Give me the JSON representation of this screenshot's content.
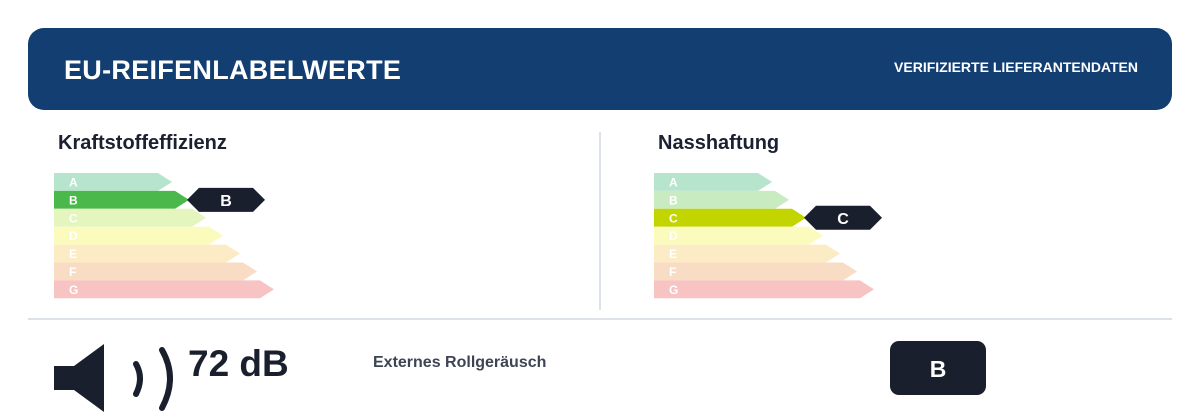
{
  "header": {
    "title": "EU-REIFENLABELWERTE",
    "subtitle": "VERIFIZIERTE LIEFERANTENDATEN",
    "bg_color": "#123e72"
  },
  "fuel_efficiency": {
    "title": "Kraftstoffeffizienz",
    "selected": "B",
    "grades": [
      {
        "letter": "A",
        "color": "#b7e4cd",
        "active_color": "#2fa24e"
      },
      {
        "letter": "B",
        "color": "#c8ebc1",
        "active_color": "#4bb84b"
      },
      {
        "letter": "C",
        "color": "#e4f5bd",
        "active_color": "#c2d500"
      },
      {
        "letter": "D",
        "color": "#fbfbbd",
        "active_color": "#f2e400"
      },
      {
        "letter": "E",
        "color": "#fcecc6",
        "active_color": "#f6b800"
      },
      {
        "letter": "F",
        "color": "#f9dcc4",
        "active_color": "#ec7a1c"
      },
      {
        "letter": "G",
        "color": "#f7c3c3",
        "active_color": "#e3262a"
      }
    ]
  },
  "wet_grip": {
    "title": "Nasshaftung",
    "selected": "C",
    "grades": [
      {
        "letter": "A",
        "color": "#b7e4cd",
        "active_color": "#2fa24e"
      },
      {
        "letter": "B",
        "color": "#c8ebc1",
        "active_color": "#4bb84b"
      },
      {
        "letter": "C",
        "color": "#e4f5bd",
        "active_color": "#c2d500"
      },
      {
        "letter": "D",
        "color": "#fbfbbd",
        "active_color": "#f2e400"
      },
      {
        "letter": "E",
        "color": "#fcecc6",
        "active_color": "#f6b800"
      },
      {
        "letter": "F",
        "color": "#f9dcc4",
        "active_color": "#ec7a1c"
      },
      {
        "letter": "G",
        "color": "#f7c3c3",
        "active_color": "#e3262a"
      }
    ]
  },
  "noise": {
    "value": "72 dB",
    "label": "Externes Rollgeräusch",
    "class": "B",
    "icon": "speaker-icon"
  },
  "colors": {
    "marker": "#1a1f2e"
  }
}
